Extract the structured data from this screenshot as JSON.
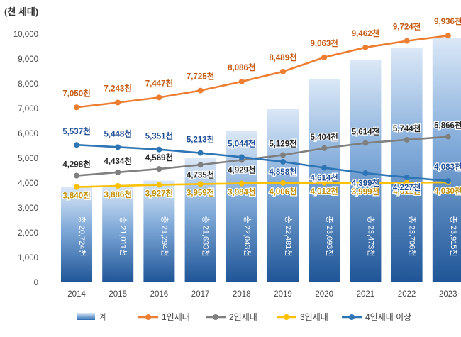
{
  "chart_data": {
    "type": "bar",
    "unit_label": "(천 세대)",
    "categories": [
      "2014",
      "2015",
      "2016",
      "2017",
      "2018",
      "2019",
      "2020",
      "2021",
      "2022",
      "2023"
    ],
    "ylim": [
      0,
      10000
    ],
    "yticks": [
      0,
      1000,
      2000,
      3000,
      4000,
      5000,
      6000,
      7000,
      8000,
      9000,
      10000
    ],
    "ytick_labels": [
      "0",
      "1,000",
      "2,000",
      "3,000",
      "4,000",
      "5,000",
      "6,000",
      "7,000",
      "8,000",
      "9,000",
      "10,000"
    ],
    "bar_series": {
      "name": "계",
      "values": [
        20724,
        21011,
        21294,
        21633,
        22043,
        22481,
        23093,
        23473,
        23706,
        23915
      ],
      "labels": [
        "총 20,724천",
        "총 21,011천",
        "총 21,294천",
        "총 21,633천",
        "총 22,043천",
        "총 22,481천",
        "총 23,093천",
        "총 23,473천",
        "총 23,706천",
        "총 23,915천"
      ],
      "visible_heights": [
        3850,
        3900,
        4100,
        5000,
        6100,
        7000,
        8200,
        8950,
        9450,
        9850
      ]
    },
    "series": [
      {
        "name": "1인세대",
        "color": "#ed7d31",
        "values": [
          7050,
          7243,
          7447,
          7725,
          8086,
          8489,
          9063,
          9462,
          9724,
          9936
        ],
        "labels": [
          "7,050천",
          "7,243천",
          "7,447천",
          "7,725천",
          "8,086천",
          "8,489천",
          "9,063천",
          "9,462천",
          "9,724천",
          "9,936천"
        ]
      },
      {
        "name": "2인세대",
        "color": "#7f7f7f",
        "values": [
          4298,
          4434,
          4569,
          4735,
          4929,
          5129,
          5404,
          5614,
          5744,
          5866
        ],
        "labels": [
          "4,298천",
          "4,434천",
          "4,569천",
          "4,735천",
          "4,929천",
          "5,129천",
          "5,404천",
          "5,614천",
          "5,744천",
          "5,866천"
        ]
      },
      {
        "name": "3인세대",
        "color": "#ffc000",
        "values": [
          3840,
          3886,
          3927,
          3959,
          3984,
          4006,
          4012,
          3999,
          4011,
          4030
        ],
        "labels": [
          "3,840천",
          "3,886천",
          "3,927천",
          "3,959천",
          "3,984천",
          "4,006천",
          "4,012천",
          "3,999천",
          "4,011천",
          "4,030천"
        ]
      },
      {
        "name": "4인세대 이상",
        "color": "#2e75b6",
        "values": [
          5537,
          5448,
          5351,
          5213,
          5044,
          4858,
          4614,
          4399,
          4227,
          4083
        ],
        "labels": [
          "5,537천",
          "5,448천",
          "5,351천",
          "5,213천",
          "5,044천",
          "4,858천",
          "4,614천",
          "4,399천",
          "4,227천",
          "4,083천"
        ]
      }
    ],
    "legend": {
      "placement": "bottom",
      "items": [
        "계",
        "1인세대",
        "2인세대",
        "3인세대",
        "4인세대 이상"
      ]
    },
    "grid": false
  }
}
